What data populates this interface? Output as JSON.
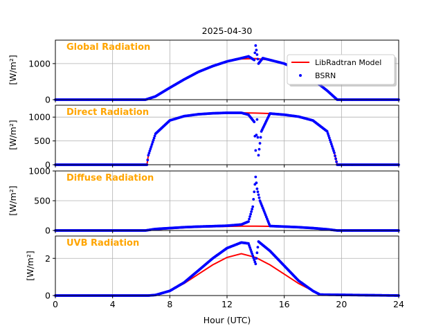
{
  "title": "2025-04-30",
  "xlabel": "Hour (UTC)",
  "x_ticks": [
    "0",
    "4",
    "8",
    "12",
    "16",
    "20",
    "24"
  ],
  "legend": {
    "model": "LibRadtran Model",
    "obs": "BSRN",
    "placement": "upper-right of first panel"
  },
  "colors": {
    "model": "#ff0000",
    "obs": "#0000ff",
    "label": "#ffa500",
    "grid": "#b0b0b0"
  },
  "chart_data": [
    {
      "type": "line",
      "panel_label": "Global Radiation",
      "ylabel": "[W/m²]",
      "ylim": [
        0,
        1650
      ],
      "y_ticks": [
        0,
        1000
      ],
      "y_tick_labels": [
        "0",
        "1000"
      ],
      "xlim": [
        0,
        24
      ],
      "series": [
        {
          "name": "LibRadtran Model",
          "x": [
            0,
            6.3,
            7,
            8,
            9,
            10,
            11,
            12,
            13,
            14,
            15,
            16,
            17,
            18,
            19,
            19.7,
            24
          ],
          "values": [
            0,
            0,
            90,
            330,
            560,
            770,
            930,
            1060,
            1130,
            1140,
            1100,
            1000,
            820,
            560,
            250,
            0,
            0
          ]
        },
        {
          "name": "BSRN",
          "x": [
            0,
            6.3,
            7,
            8,
            9,
            10,
            11,
            12,
            13,
            13.5,
            13.9,
            14,
            14.2,
            14.5,
            15,
            16,
            17,
            18,
            19,
            19.7,
            24
          ],
          "values": [
            0,
            0,
            90,
            330,
            560,
            770,
            930,
            1060,
            1150,
            1200,
            1100,
            1500,
            1000,
            1150,
            1100,
            1000,
            820,
            560,
            250,
            0,
            0
          ]
        }
      ]
    },
    {
      "type": "line",
      "panel_label": "Direct Radiation",
      "ylabel": "[W/m²]",
      "ylim": [
        0,
        1250
      ],
      "y_ticks": [
        0,
        500,
        1000
      ],
      "y_tick_labels": [
        "0",
        "500",
        "1000"
      ],
      "xlim": [
        0,
        24
      ],
      "series": [
        {
          "name": "LibRadtran Model",
          "x": [
            0,
            6.4,
            6.5,
            7,
            8,
            9,
            10,
            11,
            12,
            13,
            14,
            15,
            16,
            17,
            18,
            19,
            19.5,
            19.7,
            24
          ],
          "values": [
            0,
            0,
            200,
            650,
            930,
            1020,
            1060,
            1080,
            1090,
            1090,
            1085,
            1075,
            1050,
            1010,
            930,
            700,
            250,
            0,
            0
          ]
        },
        {
          "name": "BSRN",
          "x": [
            0,
            6.4,
            6.5,
            7,
            8,
            9,
            10,
            11,
            12,
            13,
            13.5,
            13.9,
            14,
            14.1,
            14.2,
            14.4,
            15,
            16,
            17,
            18,
            19,
            19.5,
            19.7,
            24
          ],
          "values": [
            0,
            0,
            200,
            650,
            930,
            1020,
            1060,
            1080,
            1090,
            1090,
            1050,
            900,
            300,
            950,
            200,
            700,
            1075,
            1050,
            1010,
            930,
            700,
            250,
            0,
            0
          ]
        }
      ]
    },
    {
      "type": "line",
      "panel_label": "Diffuse Radiation",
      "ylabel": "[W/m²]",
      "ylim": [
        0,
        1000
      ],
      "y_ticks": [
        0,
        500,
        1000
      ],
      "y_tick_labels": [
        "0",
        "500",
        "1000"
      ],
      "xlim": [
        0,
        24
      ],
      "series": [
        {
          "name": "LibRadtran Model",
          "x": [
            0,
            6.3,
            7,
            8,
            9,
            10,
            11,
            12,
            13,
            14,
            15,
            16,
            17,
            18,
            19,
            19.7,
            24
          ],
          "values": [
            0,
            0,
            15,
            30,
            45,
            55,
            62,
            68,
            72,
            73,
            70,
            62,
            50,
            35,
            15,
            0,
            0
          ]
        },
        {
          "name": "BSRN",
          "x": [
            0,
            6.3,
            7,
            8,
            9,
            10,
            11,
            12,
            13,
            13.5,
            13.8,
            14,
            14.1,
            14.3,
            15,
            16,
            17,
            18,
            19,
            19.7,
            24
          ],
          "values": [
            0,
            0,
            25,
            40,
            55,
            65,
            72,
            80,
            100,
            150,
            400,
            900,
            700,
            500,
            75,
            65,
            55,
            40,
            20,
            0,
            0
          ]
        }
      ]
    },
    {
      "type": "line",
      "panel_label": "UVB Radiation",
      "ylabel": "[W/m²]",
      "ylim": [
        0,
        3.2
      ],
      "y_ticks": [
        0,
        2
      ],
      "y_tick_labels": [
        "0",
        "2"
      ],
      "xlim": [
        0,
        24
      ],
      "series": [
        {
          "name": "LibRadtran Model",
          "x": [
            0,
            6.5,
            7,
            8,
            9,
            10,
            11,
            12,
            13,
            14,
            15,
            16,
            17,
            18,
            18.5,
            24
          ],
          "values": [
            0,
            0,
            0.03,
            0.25,
            0.65,
            1.15,
            1.65,
            2.05,
            2.25,
            2.05,
            1.65,
            1.15,
            0.65,
            0.25,
            0.05,
            0
          ]
        },
        {
          "name": "BSRN",
          "x": [
            0,
            6.5,
            7,
            8,
            9,
            10,
            11,
            12,
            13,
            13.5,
            14,
            14.2,
            15,
            16,
            17,
            18,
            18.5,
            24
          ],
          "values": [
            0,
            0,
            0.03,
            0.25,
            0.7,
            1.35,
            2.0,
            2.55,
            2.85,
            2.8,
            1.7,
            2.9,
            2.4,
            1.6,
            0.8,
            0.25,
            0.05,
            0
          ]
        }
      ]
    }
  ]
}
